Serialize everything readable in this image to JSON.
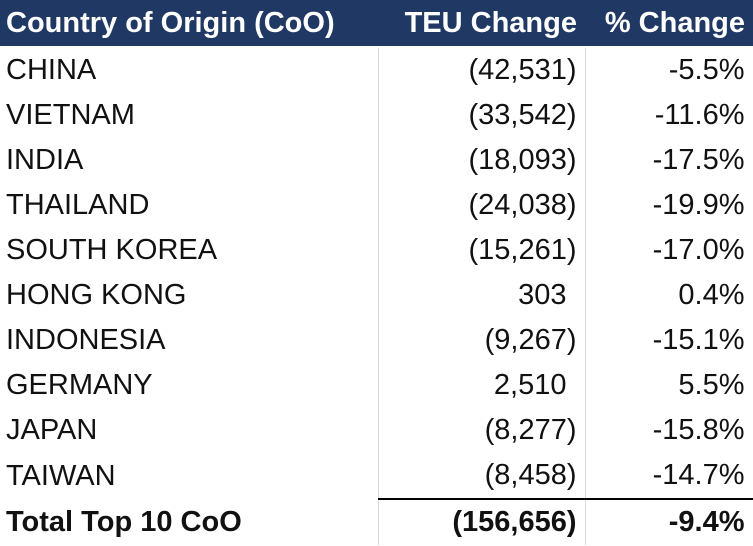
{
  "table": {
    "header": [
      "Country of Origin (CoO)",
      "TEU Change",
      "% Change"
    ],
    "rows": [
      [
        "CHINA",
        "(42,531)",
        "-5.5%"
      ],
      [
        "VIETNAM",
        "(33,542)",
        "-11.6%"
      ],
      [
        "INDIA",
        "(18,093)",
        "-17.5%"
      ],
      [
        "THAILAND",
        "(24,038)",
        "-19.9%"
      ],
      [
        "SOUTH KOREA",
        "(15,261)",
        "-17.0%"
      ],
      [
        "HONG KONG",
        "303",
        "0.4%"
      ],
      [
        "INDONESIA",
        "(9,267)",
        "-15.1%"
      ],
      [
        "GERMANY",
        "2,510",
        "5.5%"
      ],
      [
        "JAPAN",
        "(8,277)",
        "-15.8%"
      ],
      [
        "TAIWAN",
        "(8,458)",
        "-14.7%"
      ]
    ],
    "total": [
      "Total Top 10 CoO",
      "(156,656)",
      "-9.4%"
    ]
  }
}
